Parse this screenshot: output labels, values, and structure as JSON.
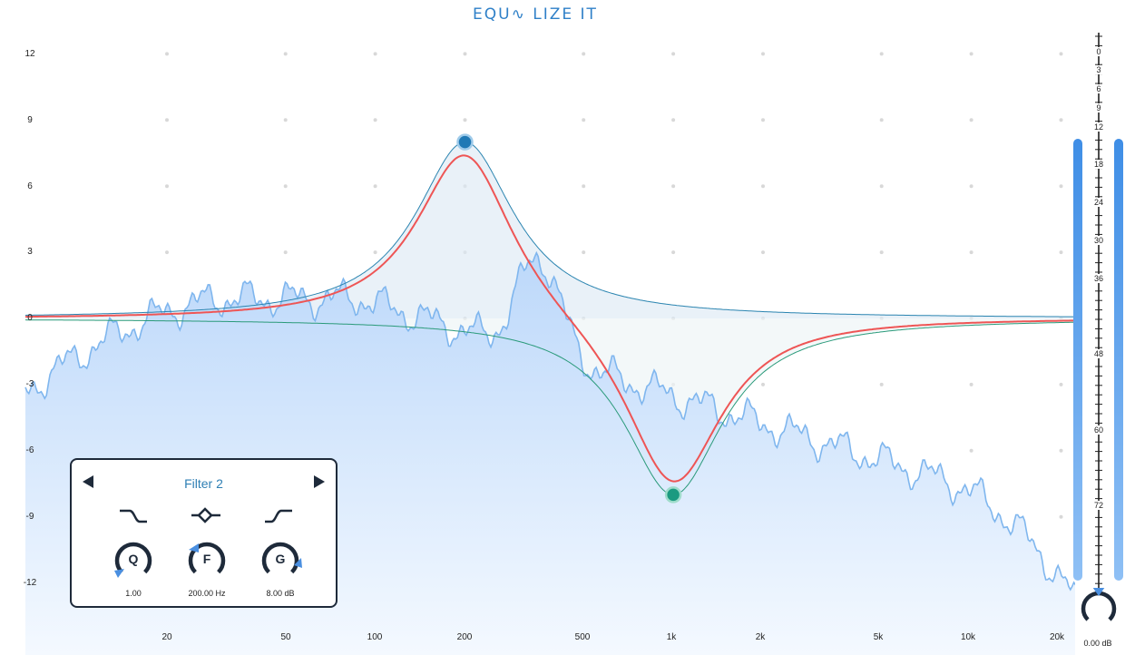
{
  "app": {
    "title": "EQU∿ LIZE IT"
  },
  "graph": {
    "y_labels": [
      "12",
      "9",
      "6",
      "3",
      "0",
      "-3",
      "-6",
      "-9",
      "-12"
    ],
    "x_labels": [
      "20",
      "50",
      "100",
      "200",
      "500",
      "1k",
      "2k",
      "5k",
      "10k",
      "20k"
    ],
    "colors": {
      "eq_curve": "#ee5555",
      "band1_curve": "#2a84b0",
      "band2_curve": "#2a9a7a",
      "spectrum_fill": "#c3dcfa",
      "spectrum_line": "#7fb6ee",
      "band1_node": "#1f79b5",
      "band2_node": "#1b9a80"
    },
    "bands": [
      {
        "name": "band-1",
        "freq": 200,
        "gain_db": 8,
        "q": 1
      },
      {
        "name": "band-2",
        "freq": 1000,
        "gain_db": -8,
        "q": 1
      }
    ]
  },
  "filter_panel": {
    "title": "Filter 2",
    "prev_icon": "triangle-left-icon",
    "next_icon": "triangle-right-icon",
    "types": [
      {
        "name": "high-cut",
        "icon": "high-cut-icon"
      },
      {
        "name": "bell",
        "icon": "bell-icon"
      },
      {
        "name": "low-cut",
        "icon": "low-cut-icon"
      }
    ],
    "knobs": [
      {
        "letter": "Q",
        "value": "1.00"
      },
      {
        "letter": "F",
        "value": "200.00 Hz"
      },
      {
        "letter": "G",
        "value": "8.00 dB"
      }
    ]
  },
  "meter": {
    "labels": [
      "0",
      "3",
      "6",
      "9",
      "12",
      "18",
      "24",
      "30",
      "36",
      "48",
      "60",
      "72"
    ],
    "output_gain": "0.00 dB"
  }
}
